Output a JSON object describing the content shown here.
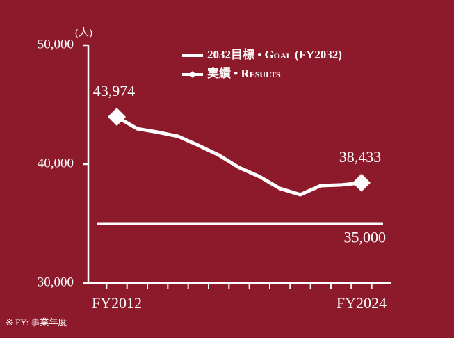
{
  "chart_data": {
    "type": "line",
    "unit": "(人)",
    "categories": [
      "FY2012",
      null,
      null,
      null,
      null,
      null,
      null,
      null,
      null,
      null,
      null,
      null,
      "FY2024"
    ],
    "series": [
      {
        "name": "実績 • Results",
        "color": "#ffffff",
        "values": [
          43974,
          42980,
          42690,
          42340,
          41580,
          40760,
          39710,
          38950,
          37950,
          37430,
          38190,
          38250,
          38433
        ],
        "value_labels": [
          "43,974",
          null,
          null,
          null,
          null,
          null,
          null,
          null,
          null,
          null,
          null,
          null,
          "38,433"
        ]
      }
    ],
    "goal": {
      "name": "2032目標 • Goal (FY2032)",
      "color": "#ffffff",
      "value": 35000,
      "value_label": "35,000"
    },
    "ylim": [
      30000,
      50000
    ],
    "yticks": [
      {
        "value": 30000,
        "label": "30,000"
      },
      {
        "value": 40000,
        "label": "40,000"
      },
      {
        "value": 50000,
        "label": "50,000"
      }
    ],
    "footnote": "※ FY: 事業年度"
  }
}
